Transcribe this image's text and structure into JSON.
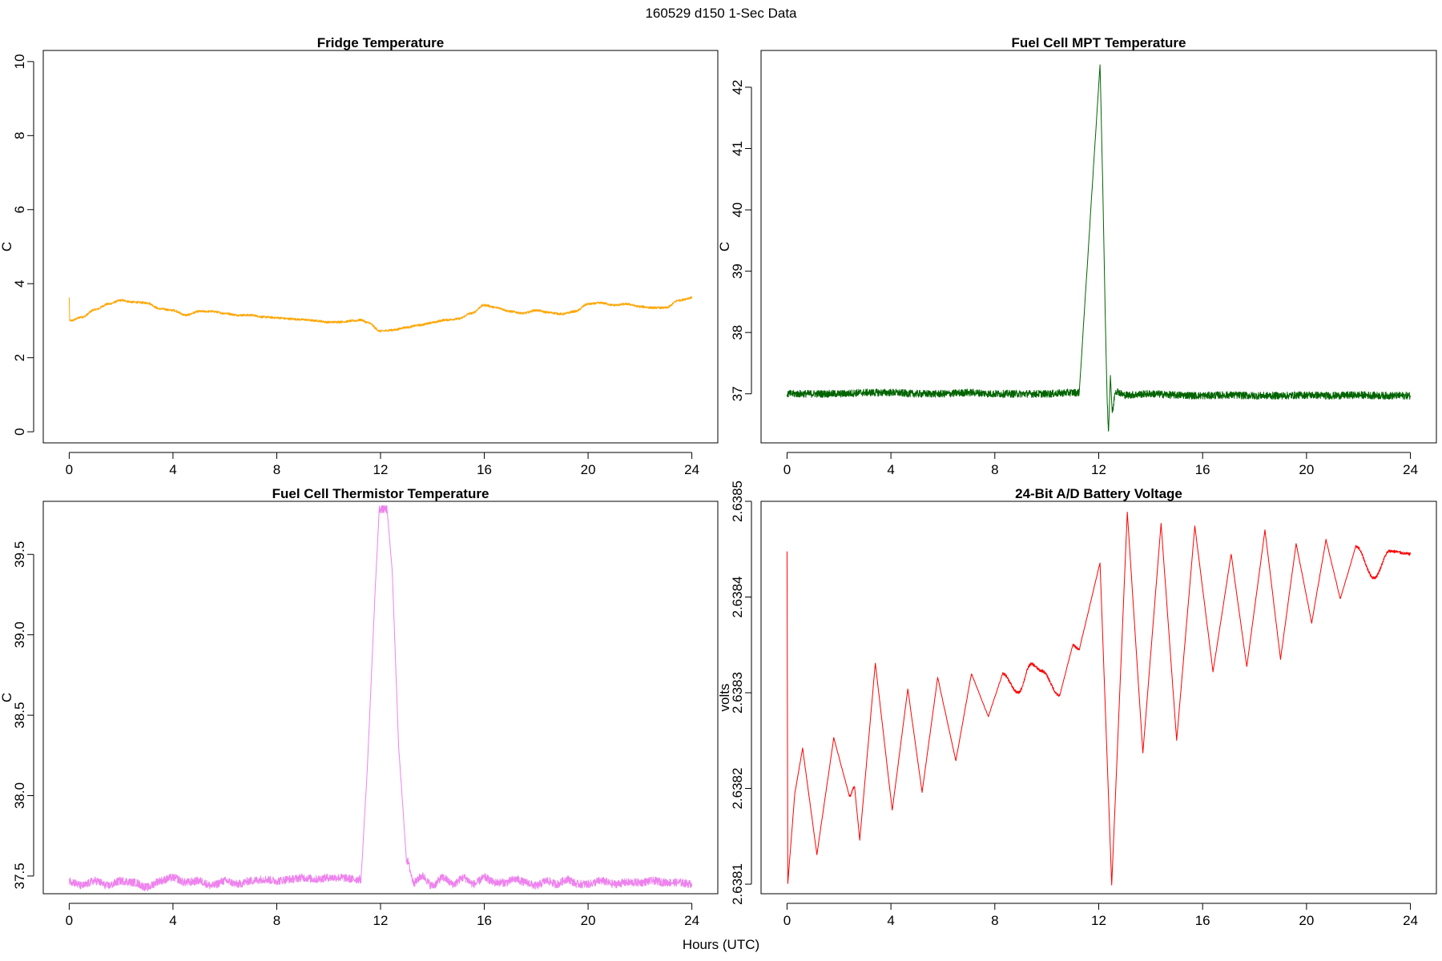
{
  "figure": {
    "title": "160529   d150   1-Sec Data",
    "xlabel": "Hours (UTC)"
  },
  "chart_data": [
    {
      "type": "line",
      "title": "Fridge Temperature",
      "ylabel": "C",
      "xlabel": "",
      "xlim": [
        -1,
        25
      ],
      "ylim": [
        -0.3,
        10.3
      ],
      "xticks": [
        0,
        4,
        8,
        12,
        16,
        20,
        24
      ],
      "yticks": [
        0,
        2,
        4,
        6,
        8,
        10
      ],
      "ytick_labels": [
        "0",
        "2",
        "4",
        "6",
        "8",
        "10"
      ],
      "color": "#ffa500",
      "noise": 0.03,
      "series": [
        {
          "name": "Fridge Temperature",
          "x": [
            0,
            0.02,
            0.05,
            0.5,
            1,
            1.5,
            2,
            2.5,
            3,
            3.5,
            4,
            4.5,
            5,
            5.5,
            6,
            6.5,
            7,
            7.5,
            8,
            8.5,
            9,
            9.5,
            10,
            10.5,
            11,
            11.25,
            11.5,
            12,
            12.5,
            13,
            13.5,
            14,
            14.5,
            15,
            15.5,
            16,
            16.5,
            17,
            17.5,
            18,
            18.5,
            19,
            19.5,
            20,
            20.5,
            21,
            21.5,
            22,
            22.5,
            23,
            23.5,
            24
          ],
          "y": [
            3.62,
            3.0,
            3.0,
            3.1,
            3.3,
            3.45,
            3.55,
            3.5,
            3.48,
            3.32,
            3.28,
            3.15,
            3.25,
            3.25,
            3.2,
            3.15,
            3.15,
            3.1,
            3.08,
            3.05,
            3.03,
            3.0,
            2.96,
            2.97,
            3.0,
            3.02,
            2.95,
            2.72,
            2.75,
            2.82,
            2.88,
            2.95,
            3.02,
            3.05,
            3.2,
            3.42,
            3.35,
            3.25,
            3.2,
            3.28,
            3.22,
            3.18,
            3.25,
            3.45,
            3.48,
            3.42,
            3.45,
            3.38,
            3.35,
            3.35,
            3.55,
            3.62
          ]
        }
      ]
    },
    {
      "type": "line",
      "title": "Fuel Cell MPT Temperature",
      "ylabel": "C",
      "xlabel": "",
      "xlim": [
        -1,
        25
      ],
      "ylim": [
        36.2,
        42.6
      ],
      "xticks": [
        0,
        4,
        8,
        12,
        16,
        20,
        24
      ],
      "yticks": [
        37,
        38,
        39,
        40,
        41,
        42
      ],
      "ytick_labels": [
        "37",
        "38",
        "39",
        "40",
        "41",
        "42"
      ],
      "color": "#006400",
      "noise": 0.06,
      "series": [
        {
          "name": "Fuel Cell MPT Temperature",
          "x": [
            0,
            1,
            2,
            3,
            4,
            5,
            6,
            7,
            8,
            9,
            10,
            11,
            11.25,
            12.05,
            12.15,
            12.25,
            12.33,
            12.38,
            12.45,
            12.52,
            12.65,
            13,
            14,
            15,
            16,
            17,
            18,
            19,
            20,
            21,
            22,
            23,
            24
          ],
          "y": [
            37.0,
            37.0,
            37.0,
            37.02,
            37.02,
            37.0,
            37.0,
            37.02,
            37.0,
            37.0,
            37.0,
            37.02,
            37.02,
            42.38,
            40.5,
            38.3,
            36.8,
            36.4,
            37.3,
            36.7,
            37.05,
            36.98,
            37.0,
            36.98,
            36.97,
            36.98,
            36.97,
            36.97,
            36.98,
            36.97,
            36.98,
            36.97,
            36.97
          ]
        }
      ]
    },
    {
      "type": "line",
      "title": "Fuel Cell Thermistor Temperature",
      "ylabel": "C",
      "xlabel": "",
      "xlim": [
        -1,
        25
      ],
      "ylim": [
        37.39,
        39.83
      ],
      "xticks": [
        0,
        4,
        8,
        12,
        16,
        20,
        24
      ],
      "yticks": [
        37.5,
        38.0,
        38.5,
        39.0,
        39.5
      ],
      "ytick_labels": [
        "37.5",
        "38.0",
        "38.5",
        "39.0",
        "39.5"
      ],
      "color": "#ee82ee",
      "noise": 0.025,
      "series": [
        {
          "name": "Fuel Cell Thermistor Temperature",
          "x": [
            0,
            0.5,
            1,
            1.5,
            2,
            2.5,
            3,
            3.5,
            4,
            4.5,
            5,
            5.5,
            6,
            6.5,
            7,
            7.5,
            8,
            8.5,
            9,
            9.5,
            10,
            10.5,
            11,
            11.25,
            11.5,
            11.8,
            11.95,
            12.25,
            12.45,
            12.7,
            13,
            13.3,
            13.6,
            14,
            14.4,
            14.8,
            15.2,
            15.6,
            16,
            16.4,
            16.8,
            17.2,
            17.6,
            18,
            18.4,
            18.8,
            19.2,
            19.6,
            20,
            20.5,
            21,
            21.5,
            22,
            22.5,
            23,
            23.5,
            24
          ],
          "y": [
            37.47,
            37.44,
            37.47,
            37.44,
            37.47,
            37.46,
            37.43,
            37.47,
            37.49,
            37.46,
            37.47,
            37.44,
            37.47,
            37.45,
            37.47,
            37.48,
            37.47,
            37.48,
            37.49,
            37.48,
            37.49,
            37.49,
            37.48,
            37.48,
            38.2,
            39.3,
            39.78,
            39.78,
            39.4,
            38.3,
            37.6,
            37.46,
            37.5,
            37.44,
            37.49,
            37.45,
            37.49,
            37.45,
            37.49,
            37.46,
            37.46,
            37.48,
            37.46,
            37.44,
            37.47,
            37.45,
            37.48,
            37.45,
            37.45,
            37.47,
            37.45,
            37.46,
            37.46,
            37.47,
            37.46,
            37.46,
            37.45
          ]
        }
      ]
    },
    {
      "type": "line",
      "title": "24-Bit A/D Battery Voltage",
      "ylabel": "volts",
      "xlabel": "",
      "xlim": [
        -1,
        25
      ],
      "ylim": [
        2.63809,
        2.6385
      ],
      "xticks": [
        0,
        4,
        8,
        12,
        16,
        20,
        24
      ],
      "yticks": [
        2.6381,
        2.6382,
        2.6383,
        2.6384,
        2.6385
      ],
      "ytick_labels": [
        "2.6381",
        "2.6382",
        "2.6383",
        "2.6384",
        "2.6385"
      ],
      "color": "#ff0000",
      "noise": 1.5e-06,
      "series": [
        {
          "name": "24-Bit A/D Battery Voltage",
          "x": [
            0,
            0.03,
            0.3,
            0.6,
            1.15,
            1.8,
            2.4,
            2.6,
            2.8,
            3.4,
            4.05,
            4.65,
            5.2,
            5.8,
            6.5,
            7.1,
            7.75,
            8.3,
            8.9,
            9.4,
            9.8,
            10.5,
            11.0,
            11.25,
            12.05,
            12.5,
            13.1,
            13.7,
            14.4,
            15.0,
            15.7,
            16.4,
            17.1,
            17.7,
            18.4,
            19.0,
            19.6,
            20.2,
            20.75,
            21.3,
            21.9,
            22.6,
            23.2,
            24
          ],
          "y": [
            2.638448,
            2.638101,
            2.638195,
            2.638242,
            2.638131,
            2.638253,
            2.638192,
            2.638202,
            2.638146,
            2.638331,
            2.638177,
            2.638304,
            2.638196,
            2.638316,
            2.638229,
            2.63832,
            2.638275,
            2.63832,
            2.6383,
            2.63833,
            2.638323,
            2.638297,
            2.63835,
            2.638345,
            2.638436,
            2.638099,
            2.638489,
            2.638237,
            2.638477,
            2.63825,
            2.638474,
            2.638322,
            2.638445,
            2.638327,
            2.63847,
            2.638335,
            2.638456,
            2.638373,
            2.63846,
            2.638398,
            2.638453,
            2.63842,
            2.638448,
            2.638445
          ]
        }
      ]
    }
  ]
}
